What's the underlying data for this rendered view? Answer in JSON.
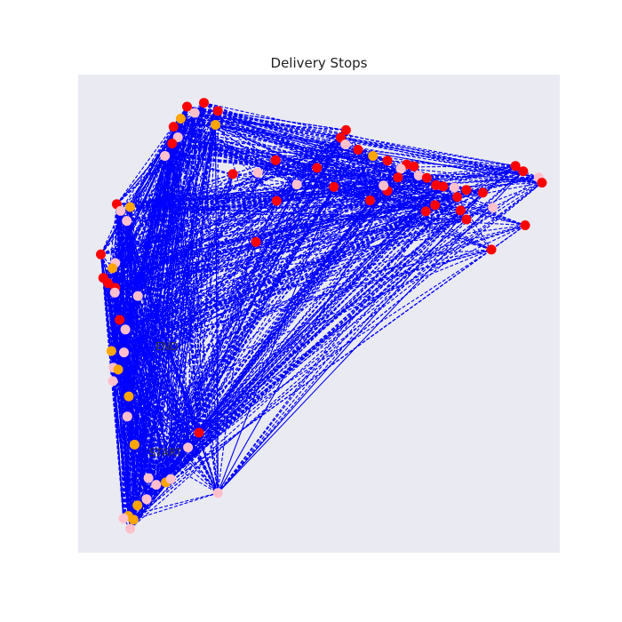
{
  "chart_data": {
    "type": "scatter",
    "title": "Delivery Stops",
    "xlabel": "",
    "ylabel": "",
    "xlim": [
      0,
      100
    ],
    "ylim": [
      0,
      100
    ],
    "grid": false,
    "axes_visible": false,
    "line_style": "dashed",
    "colors": {
      "background": "#eaeaf2",
      "route": "#0000ff",
      "stop_red": "#ff0000",
      "stop_orange": "#ffa500",
      "stop_pink": "#ffc0cb"
    },
    "annotations": [
      {
        "text": "END",
        "x": 16.0,
        "y": 42.4
      },
      {
        "text": "START",
        "x": 14.7,
        "y": 20.2
      }
    ],
    "stops": [
      {
        "x": 22.6,
        "y": 93.3,
        "color": "red"
      },
      {
        "x": 26.1,
        "y": 94.1,
        "color": "red"
      },
      {
        "x": 29.0,
        "y": 92.4,
        "color": "red"
      },
      {
        "x": 24.2,
        "y": 92.0,
        "color": "pink"
      },
      {
        "x": 21.3,
        "y": 90.8,
        "color": "orange"
      },
      {
        "x": 19.8,
        "y": 89.1,
        "color": "red"
      },
      {
        "x": 20.7,
        "y": 86.9,
        "color": "pink"
      },
      {
        "x": 19.5,
        "y": 85.6,
        "color": "red"
      },
      {
        "x": 18.0,
        "y": 83.0,
        "color": "pink"
      },
      {
        "x": 28.5,
        "y": 89.5,
        "color": "orange"
      },
      {
        "x": 55.6,
        "y": 88.4,
        "color": "red"
      },
      {
        "x": 54.5,
        "y": 86.8,
        "color": "red"
      },
      {
        "x": 55.5,
        "y": 85.4,
        "color": "pink"
      },
      {
        "x": 58.1,
        "y": 84.3,
        "color": "red"
      },
      {
        "x": 61.2,
        "y": 83.0,
        "color": "orange"
      },
      {
        "x": 64.2,
        "y": 82.0,
        "color": "red"
      },
      {
        "x": 68.2,
        "y": 81.2,
        "color": "red"
      },
      {
        "x": 67.0,
        "y": 80.3,
        "color": "pink"
      },
      {
        "x": 69.7,
        "y": 80.8,
        "color": "red"
      },
      {
        "x": 66.4,
        "y": 78.5,
        "color": "red"
      },
      {
        "x": 70.7,
        "y": 78.9,
        "color": "pink"
      },
      {
        "x": 72.4,
        "y": 78.4,
        "color": "red"
      },
      {
        "x": 74.3,
        "y": 76.9,
        "color": "red"
      },
      {
        "x": 75.8,
        "y": 76.6,
        "color": "red"
      },
      {
        "x": 78.1,
        "y": 76.4,
        "color": "pink"
      },
      {
        "x": 78.7,
        "y": 74.4,
        "color": "red"
      },
      {
        "x": 80.6,
        "y": 75.9,
        "color": "red"
      },
      {
        "x": 84.0,
        "y": 75.3,
        "color": "red"
      },
      {
        "x": 90.8,
        "y": 80.9,
        "color": "red"
      },
      {
        "x": 92.4,
        "y": 79.8,
        "color": "red"
      },
      {
        "x": 95.6,
        "y": 78.5,
        "color": "pink"
      },
      {
        "x": 96.3,
        "y": 77.4,
        "color": "red"
      },
      {
        "x": 86.1,
        "y": 72.2,
        "color": "pink"
      },
      {
        "x": 79.4,
        "y": 71.6,
        "color": "red"
      },
      {
        "x": 80.6,
        "y": 69.7,
        "color": "red"
      },
      {
        "x": 92.8,
        "y": 68.5,
        "color": "red"
      },
      {
        "x": 85.8,
        "y": 63.4,
        "color": "red"
      },
      {
        "x": 74.1,
        "y": 72.7,
        "color": "red"
      },
      {
        "x": 72.2,
        "y": 71.4,
        "color": "red"
      },
      {
        "x": 64.2,
        "y": 75.7,
        "color": "red"
      },
      {
        "x": 63.4,
        "y": 76.8,
        "color": "pink"
      },
      {
        "x": 60.6,
        "y": 73.7,
        "color": "red"
      },
      {
        "x": 53.1,
        "y": 76.5,
        "color": "red"
      },
      {
        "x": 49.6,
        "y": 80.5,
        "color": "red"
      },
      {
        "x": 45.4,
        "y": 77.0,
        "color": "pink"
      },
      {
        "x": 41.0,
        "y": 82.1,
        "color": "red"
      },
      {
        "x": 37.3,
        "y": 79.5,
        "color": "pink"
      },
      {
        "x": 32.1,
        "y": 79.2,
        "color": "red"
      },
      {
        "x": 41.2,
        "y": 73.6,
        "color": "red"
      },
      {
        "x": 36.9,
        "y": 65.0,
        "color": "red"
      },
      {
        "x": 8.0,
        "y": 72.9,
        "color": "red"
      },
      {
        "x": 8.8,
        "y": 71.5,
        "color": "pink"
      },
      {
        "x": 10.8,
        "y": 72.3,
        "color": "orange"
      },
      {
        "x": 10.1,
        "y": 69.4,
        "color": "pink"
      },
      {
        "x": 4.7,
        "y": 62.4,
        "color": "red"
      },
      {
        "x": 7.7,
        "y": 60.6,
        "color": "pink"
      },
      {
        "x": 7.1,
        "y": 59.5,
        "color": "orange"
      },
      {
        "x": 5.2,
        "y": 57.5,
        "color": "red"
      },
      {
        "x": 6.2,
        "y": 56.4,
        "color": "red"
      },
      {
        "x": 7.7,
        "y": 55.4,
        "color": "red"
      },
      {
        "x": 7.6,
        "y": 54.4,
        "color": "pink"
      },
      {
        "x": 12.4,
        "y": 53.7,
        "color": "pink"
      },
      {
        "x": 8.6,
        "y": 48.7,
        "color": "red"
      },
      {
        "x": 9.8,
        "y": 46.7,
        "color": "pink"
      },
      {
        "x": 6.9,
        "y": 42.2,
        "color": "orange"
      },
      {
        "x": 9.5,
        "y": 41.9,
        "color": "pink"
      },
      {
        "x": 7.3,
        "y": 38.7,
        "color": "pink"
      },
      {
        "x": 8.3,
        "y": 38.3,
        "color": "orange"
      },
      {
        "x": 7.2,
        "y": 35.9,
        "color": "pink"
      },
      {
        "x": 10.5,
        "y": 32.7,
        "color": "orange"
      },
      {
        "x": 10.2,
        "y": 28.5,
        "color": "pink"
      },
      {
        "x": 11.7,
        "y": 22.6,
        "color": "orange"
      },
      {
        "x": 14.6,
        "y": 15.6,
        "color": "pink"
      },
      {
        "x": 16.2,
        "y": 14.2,
        "color": "pink"
      },
      {
        "x": 18.2,
        "y": 14.7,
        "color": "orange"
      },
      {
        "x": 19.2,
        "y": 15.4,
        "color": "pink"
      },
      {
        "x": 22.8,
        "y": 22.0,
        "color": "pink"
      },
      {
        "x": 25.1,
        "y": 25.1,
        "color": "red"
      },
      {
        "x": 29.0,
        "y": 12.5,
        "color": "pink"
      },
      {
        "x": 12.3,
        "y": 9.9,
        "color": "orange"
      },
      {
        "x": 14.2,
        "y": 11.2,
        "color": "pink"
      },
      {
        "x": 10.4,
        "y": 7.7,
        "color": "orange"
      },
      {
        "x": 11.5,
        "y": 6.9,
        "color": "orange"
      },
      {
        "x": 9.4,
        "y": 7.2,
        "color": "pink"
      },
      {
        "x": 10.8,
        "y": 5.0,
        "color": "pink"
      }
    ]
  }
}
